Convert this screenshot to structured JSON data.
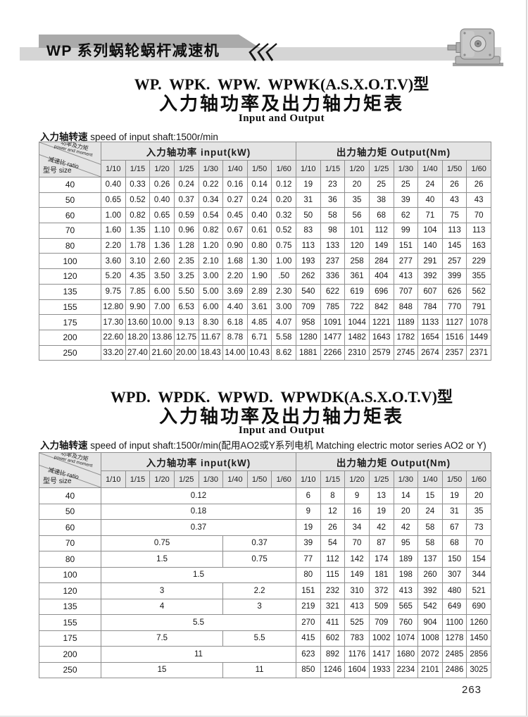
{
  "header": {
    "brand_title": "WP 系列蜗轮蜗杆减速机",
    "page_number": "263"
  },
  "labels": {
    "corner_power_cn": "功率及力矩",
    "corner_power_en": "power and moment",
    "corner_ratio_cn": "减速比",
    "corner_ratio_en": "ratio",
    "corner_size_cn": "型号",
    "corner_size_en": "size",
    "input_header": "入力轴功率  input(kW)",
    "output_header": "出力轴力矩  Output(Nm)",
    "ratios": [
      "1/10",
      "1/15",
      "1/20",
      "1/25",
      "1/30",
      "1/40",
      "1/50",
      "1/60"
    ]
  },
  "section1": {
    "title1": "WP.  WPK.  WPW.  WPWK(A.S.X.O.T.V)型",
    "title2": "入力轴功率及出力轴力矩表",
    "title3": "Input and Output",
    "note_cn": "入力轴转速",
    "note_en": " speed of input shaft:1500r/min",
    "rows": [
      {
        "size": "40",
        "input": [
          "0.40",
          "0.33",
          "0.26",
          "0.24",
          "0.22",
          "0.16",
          "0.14",
          "0.12"
        ],
        "output": [
          "19",
          "23",
          "20",
          "25",
          "25",
          "24",
          "26",
          "26"
        ]
      },
      {
        "size": "50",
        "input": [
          "0.65",
          "0.52",
          "0.40",
          "0.37",
          "0.34",
          "0.27",
          "0.24",
          "0.20"
        ],
        "output": [
          "31",
          "36",
          "35",
          "38",
          "39",
          "40",
          "43",
          "43"
        ]
      },
      {
        "size": "60",
        "input": [
          "1.00",
          "0.82",
          "0.65",
          "0.59",
          "0.54",
          "0.45",
          "0.40",
          "0.32"
        ],
        "output": [
          "50",
          "58",
          "56",
          "68",
          "62",
          "71",
          "75",
          "70"
        ]
      },
      {
        "size": "70",
        "input": [
          "1.60",
          "1.35",
          "1.10",
          "0.96",
          "0.82",
          "0.67",
          "0.61",
          "0.52"
        ],
        "output": [
          "83",
          "98",
          "101",
          "112",
          "99",
          "104",
          "113",
          "113"
        ]
      },
      {
        "size": "80",
        "input": [
          "2.20",
          "1.78",
          "1.36",
          "1.28",
          "1.20",
          "0.90",
          "0.80",
          "0.75"
        ],
        "output": [
          "113",
          "133",
          "120",
          "149",
          "151",
          "140",
          "145",
          "163"
        ]
      },
      {
        "size": "100",
        "input": [
          "3.60",
          "3.10",
          "2.60",
          "2.35",
          "2.10",
          "1.68",
          "1.30",
          "1.00"
        ],
        "output": [
          "193",
          "237",
          "258",
          "284",
          "277",
          "291",
          "257",
          "229"
        ]
      },
      {
        "size": "120",
        "input": [
          "5.20",
          "4.35",
          "3.50",
          "3.25",
          "3.00",
          "2.20",
          "1.90",
          ".50"
        ],
        "output": [
          "262",
          "336",
          "361",
          "404",
          "413",
          "392",
          "399",
          "355"
        ]
      },
      {
        "size": "135",
        "input": [
          "9.75",
          "7.85",
          "6.00",
          "5.50",
          "5.00",
          "3.69",
          "2.89",
          "2.30"
        ],
        "output": [
          "540",
          "622",
          "619",
          "696",
          "707",
          "607",
          "626",
          "562"
        ]
      },
      {
        "size": "155",
        "input": [
          "12.80",
          "9.90",
          "7.00",
          "6.53",
          "6.00",
          "4.40",
          "3.61",
          "3.00"
        ],
        "output": [
          "709",
          "785",
          "722",
          "842",
          "848",
          "784",
          "770",
          "791"
        ]
      },
      {
        "size": "175",
        "input": [
          "17.30",
          "13.60",
          "10.00",
          "9.13",
          "8.30",
          "6.18",
          "4.85",
          "4.07"
        ],
        "output": [
          "958",
          "1091",
          "1044",
          "1221",
          "1189",
          "1133",
          "1127",
          "1078"
        ]
      },
      {
        "size": "200",
        "input": [
          "22.60",
          "18.20",
          "13.86",
          "12.75",
          "11.67",
          "8.78",
          "6.71",
          "5.58"
        ],
        "output": [
          "1280",
          "1477",
          "1482",
          "1643",
          "1782",
          "1654",
          "1516",
          "1449"
        ]
      },
      {
        "size": "250",
        "input": [
          "33.20",
          "27.40",
          "21.60",
          "20.00",
          "18.43",
          "14.00",
          "10.43",
          "8.62"
        ],
        "output": [
          "1881",
          "2266",
          "2310",
          "2579",
          "2745",
          "2674",
          "2357",
          "2371"
        ]
      }
    ]
  },
  "section2": {
    "title1": "WPD.  WPDK.  WPWD.  WPWDK(A.S.X.O.T.V)型",
    "title2": "入力轴功率及出力轴力矩表",
    "title3": "Input and Output",
    "note_cn": "入力轴转速",
    "note_en": " speed of input shaft:1500r/min(配用AO2或Y系列电机 Matching electric motor series AO2 or Y)",
    "rows": [
      {
        "size": "40",
        "input": [
          {
            "v": "0.12",
            "span": 8
          }
        ],
        "output": [
          "6",
          "8",
          "9",
          "13",
          "14",
          "15",
          "19",
          "20"
        ]
      },
      {
        "size": "50",
        "input": [
          {
            "v": "0.18",
            "span": 8
          }
        ],
        "output": [
          "9",
          "12",
          "16",
          "19",
          "20",
          "24",
          "31",
          "35"
        ]
      },
      {
        "size": "60",
        "input": [
          {
            "v": "0.37",
            "span": 8
          }
        ],
        "output": [
          "19",
          "26",
          "34",
          "42",
          "42",
          "58",
          "67",
          "73"
        ]
      },
      {
        "size": "70",
        "input": [
          {
            "v": "0.75",
            "span": 5
          },
          {
            "v": "0.37",
            "span": 3
          }
        ],
        "output": [
          "39",
          "54",
          "70",
          "87",
          "95",
          "58",
          "68",
          "70"
        ]
      },
      {
        "size": "80",
        "input": [
          {
            "v": "1.5",
            "span": 5
          },
          {
            "v": "0.75",
            "span": 3
          }
        ],
        "output": [
          "77",
          "112",
          "142",
          "174",
          "189",
          "137",
          "150",
          "154"
        ]
      },
      {
        "size": "100",
        "input": [
          {
            "v": "1.5",
            "span": 8
          }
        ],
        "output": [
          "80",
          "115",
          "149",
          "181",
          "198",
          "260",
          "307",
          "344"
        ]
      },
      {
        "size": "120",
        "input": [
          {
            "v": "3",
            "span": 5
          },
          {
            "v": "2.2",
            "span": 3
          }
        ],
        "output": [
          "151",
          "232",
          "310",
          "372",
          "413",
          "392",
          "480",
          "521"
        ]
      },
      {
        "size": "135",
        "input": [
          {
            "v": "4",
            "span": 5
          },
          {
            "v": "3",
            "span": 3
          }
        ],
        "output": [
          "219",
          "321",
          "413",
          "509",
          "565",
          "542",
          "649",
          "690"
        ]
      },
      {
        "size": "155",
        "input": [
          {
            "v": "5.5",
            "span": 8
          }
        ],
        "output": [
          "270",
          "411",
          "525",
          "709",
          "760",
          "904",
          "1100",
          "1260"
        ]
      },
      {
        "size": "175",
        "input": [
          {
            "v": "7.5",
            "span": 5
          },
          {
            "v": "5.5",
            "span": 3
          }
        ],
        "output": [
          "415",
          "602",
          "783",
          "1002",
          "1074",
          "1008",
          "1278",
          "1450"
        ]
      },
      {
        "size": "200",
        "input": [
          {
            "v": "11",
            "span": 8
          }
        ],
        "output": [
          "623",
          "892",
          "1176",
          "1417",
          "1680",
          "2072",
          "2485",
          "2856"
        ]
      },
      {
        "size": "250",
        "input": [
          {
            "v": "15",
            "span": 5
          },
          {
            "v": "11",
            "span": 3
          }
        ],
        "output": [
          "850",
          "1246",
          "1604",
          "1933",
          "2234",
          "2101",
          "2486",
          "3025"
        ]
      }
    ]
  },
  "colors": {
    "band_dark": "#aaaaaa",
    "band_light": "#d5d5d5",
    "table_header_bg": "#e4e4e4",
    "grid_line": "#8e8e8e"
  }
}
